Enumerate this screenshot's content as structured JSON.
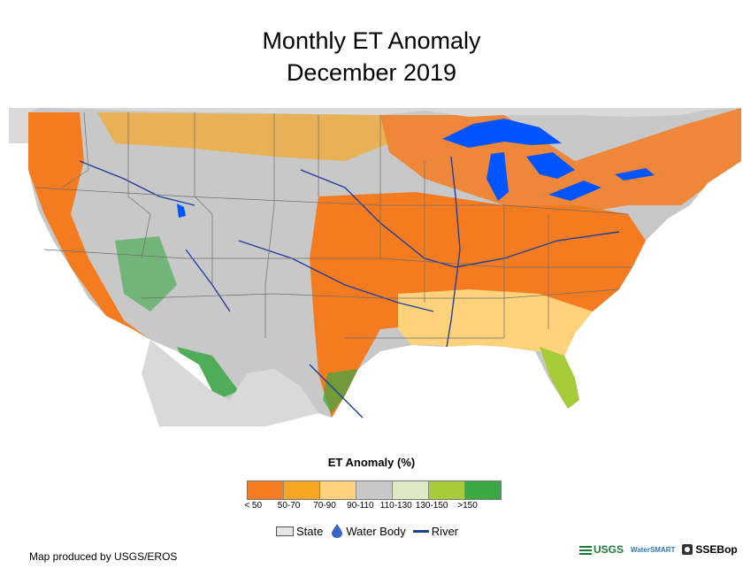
{
  "title": {
    "line1": "Monthly ET Anomaly",
    "line2": "December 2019"
  },
  "colors": {
    "lt50": "#f47b20",
    "r50_70": "#f6a623",
    "r70_90": "#fdd27a",
    "r90_110": "#c8c8c8",
    "r110_130": "#dfe8c4",
    "r130_150": "#a6cc3a",
    "gt150": "#3aa845",
    "water": "#0055ff",
    "river": "#1f3f9c",
    "state_border": "#6e6e6e",
    "outside": "#d9d9d9"
  },
  "legend": {
    "title": "ET Anomaly (%)",
    "classes": [
      {
        "label": "< 50",
        "color": "#f47b20"
      },
      {
        "label": "50-70",
        "color": "#f6a623"
      },
      {
        "label": "70-90",
        "color": "#fdd27a"
      },
      {
        "label": "90-110",
        "color": "#c8c8c8"
      },
      {
        "label": "110-130",
        "color": "#dfe8c4"
      },
      {
        "label": "130-150",
        "color": "#a6cc3a"
      },
      {
        "label": ">150",
        "color": "#3aa845"
      }
    ]
  },
  "key": {
    "state": "State",
    "water_body": "Water Body",
    "river": "River"
  },
  "credit": "Map produced by USGS/EROS",
  "logos": {
    "usgs": "USGS",
    "smart": "WaterSMART",
    "ssebop": "SSEBop"
  }
}
